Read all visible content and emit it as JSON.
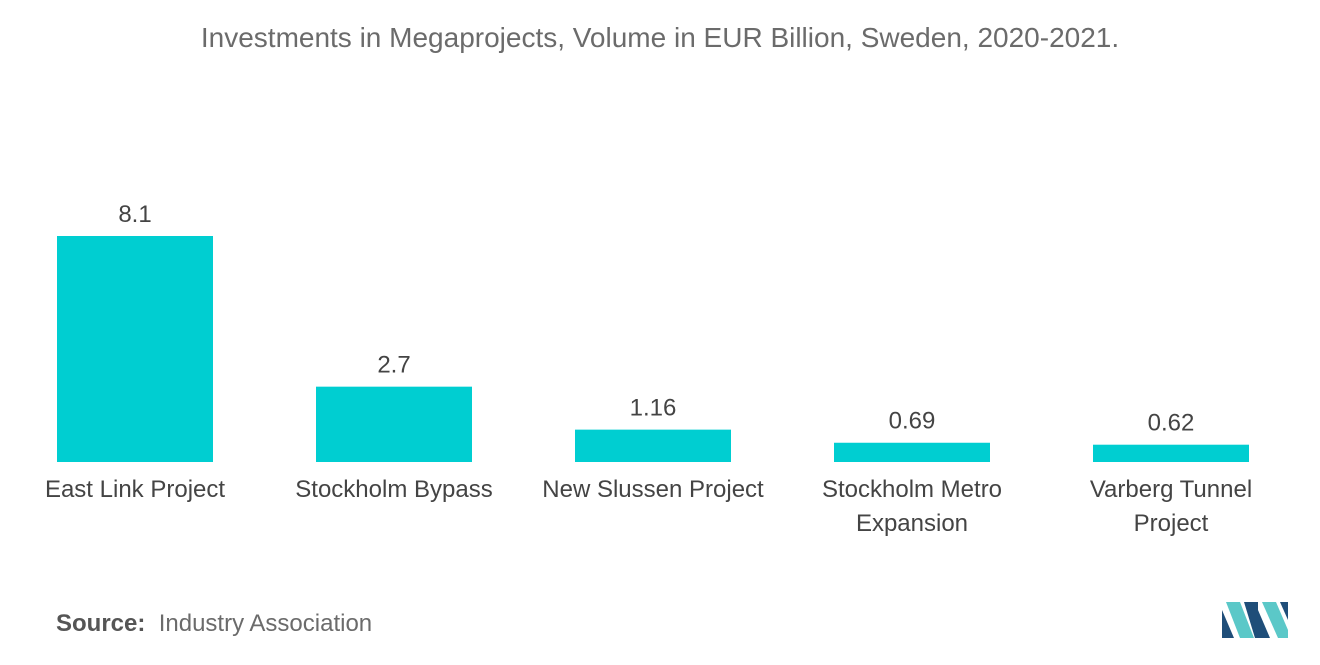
{
  "chart_data": {
    "type": "bar",
    "title": "Investments in Megaprojects, Volume in EUR Billion, Sweden, 2020-2021.",
    "categories": [
      [
        "East Link Project"
      ],
      [
        "Stockholm Bypass"
      ],
      [
        "New Slussen Project"
      ],
      [
        "Stockholm Metro",
        "Expansion"
      ],
      [
        "Varberg Tunnel",
        "Project"
      ]
    ],
    "values": [
      8.1,
      2.7,
      1.16,
      0.69,
      0.62
    ],
    "value_labels": [
      "8.1",
      "2.7",
      "1.16",
      "0.69",
      "0.62"
    ],
    "bar_color": "#00CED1",
    "grid": false,
    "ylim": [
      0,
      8.1
    ]
  },
  "footer": {
    "source_label": "Source:",
    "source_text": "Industry Association"
  },
  "logo": {
    "icon": "mordor-logo-icon",
    "colors": [
      "#1f4e79",
      "#5bc8c8"
    ]
  }
}
